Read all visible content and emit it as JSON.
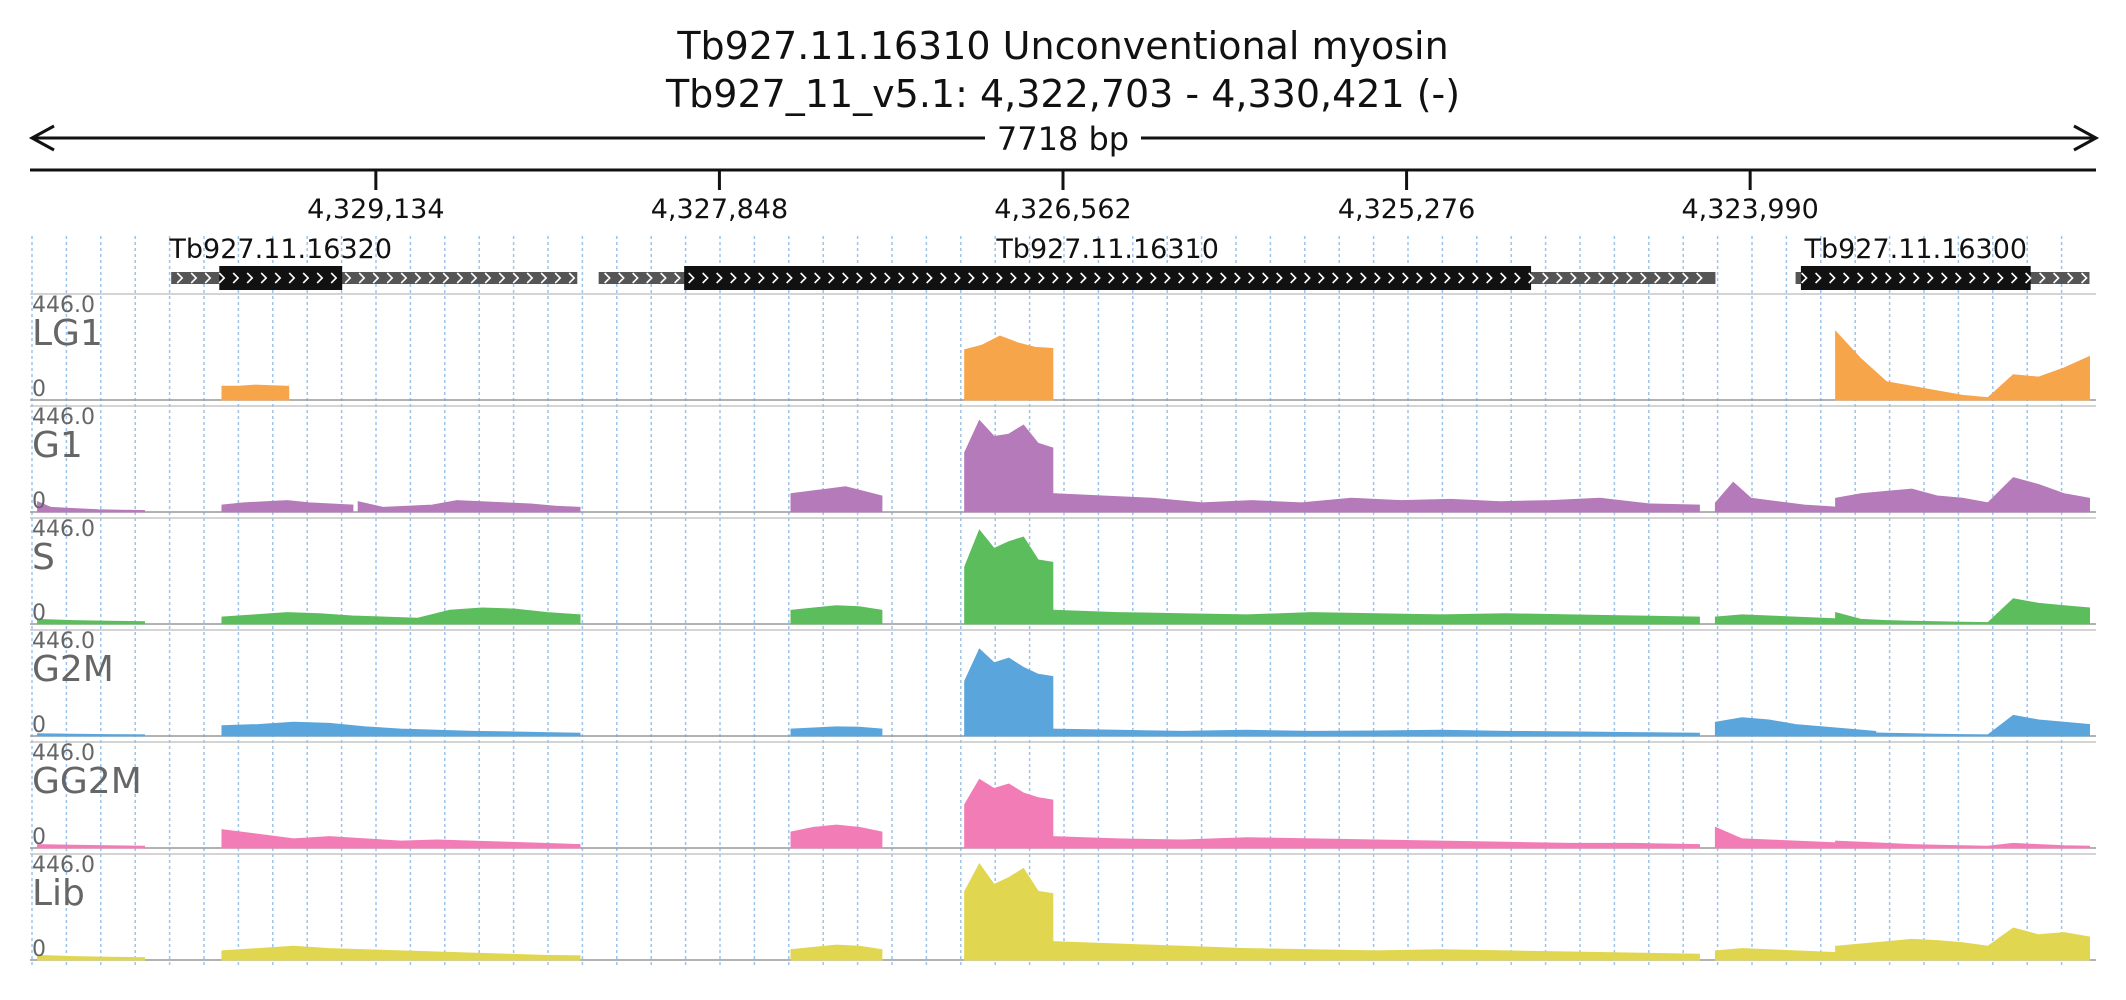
{
  "header": {
    "title_line1": "Tb927.11.16310  Unconventional myosin",
    "title_line2": "Tb927_11_v5.1: 4,322,703 - 4,330,421 (-)",
    "span_label": "7718 bp"
  },
  "region": {
    "start": 4322703,
    "end": 4330421,
    "strand": "-"
  },
  "ruler": {
    "ticks": [
      {
        "pos": 4329134,
        "label": "4,329,134"
      },
      {
        "pos": 4327848,
        "label": "4,327,848"
      },
      {
        "pos": 4326562,
        "label": "4,326,562"
      },
      {
        "pos": 4325276,
        "label": "4,325,276"
      },
      {
        "pos": 4323990,
        "label": "4,323,990"
      }
    ]
  },
  "genes": [
    {
      "name": "Tb927.11.16320",
      "utr": [
        4329900,
        4328380
      ],
      "cds": [
        4329720,
        4329260
      ]
    },
    {
      "name": "Tb927.11.16310",
      "utr": [
        4328300,
        4324120
      ],
      "cds": [
        4327980,
        4324810
      ]
    },
    {
      "name": "Tb927.11.16300",
      "utr": [
        4323820,
        4322720
      ],
      "cds": [
        4323800,
        4322940
      ]
    }
  ],
  "colors": {
    "LG1": "#f7a54a",
    "G1": "#b57ab9",
    "S": "#5cbd5c",
    "G2M": "#5aa5dc",
    "GG2M": "#f27cb6",
    "Lib": "#e0d650"
  },
  "chart_data": {
    "type": "area",
    "x_unit": "bp",
    "ymax": 446.0,
    "ymax_label": "446.0",
    "ymin_label": "0",
    "tracks": [
      {
        "name": "LG1",
        "segments": [
          [
            4329710,
            4329460,
            [
              60,
              60,
              65,
              62,
              60
            ]
          ],
          [
            4326930,
            4326600,
            [
              220,
              240,
              280,
              250,
              230,
              225
            ]
          ],
          [
            4323670,
            4322720,
            [
              300,
              180,
              80,
              60,
              40,
              20,
              10,
              110,
              100,
              140,
              190
            ]
          ]
        ]
      },
      {
        "name": "G1",
        "segments": [
          [
            4330400,
            4330350,
            [
              45,
              20
            ]
          ],
          [
            4330350,
            4330000,
            [
              20,
              15,
              10,
              8,
              6
            ]
          ],
          [
            4329710,
            4329220,
            [
              30,
              40,
              45,
              50,
              40,
              35,
              30
            ]
          ],
          [
            4329200,
            4328370,
            [
              45,
              20,
              25,
              30,
              50,
              45,
              40,
              35,
              25,
              20
            ]
          ],
          [
            4327580,
            4327240,
            [
              80,
              90,
              100,
              110,
              90,
              70
            ]
          ],
          [
            4326930,
            4326600,
            [
              260,
              400,
              330,
              340,
              380,
              300,
              280
            ]
          ],
          [
            4326600,
            4324180,
            [
              80,
              70,
              60,
              40,
              50,
              40,
              60,
              50,
              55,
              45,
              50,
              60,
              35,
              30
            ]
          ],
          [
            4324120,
            4323520,
            [
              40,
              130,
              60,
              50,
              40,
              30,
              25,
              20,
              15,
              10
            ]
          ],
          [
            4323670,
            4322720,
            [
              60,
              80,
              90,
              100,
              70,
              60,
              40,
              150,
              120,
              80,
              60
            ]
          ]
        ]
      },
      {
        "name": "S",
        "segments": [
          [
            4330400,
            4330000,
            [
              20,
              15,
              12,
              10
            ]
          ],
          [
            4329710,
            4328370,
            [
              30,
              40,
              50,
              45,
              35,
              30,
              25,
              60,
              70,
              65,
              50,
              40
            ]
          ],
          [
            4327580,
            4327240,
            [
              60,
              70,
              80,
              75,
              60
            ]
          ],
          [
            4326930,
            4326600,
            [
              250,
              410,
              330,
              360,
              380,
              280,
              270
            ]
          ],
          [
            4326600,
            4324180,
            [
              60,
              50,
              45,
              40,
              50,
              45,
              40,
              45,
              40,
              35,
              30
            ]
          ],
          [
            4324120,
            4323520,
            [
              30,
              40,
              35,
              30,
              25,
              20,
              15
            ]
          ],
          [
            4323670,
            4322720,
            [
              50,
              20,
              15,
              12,
              10,
              8,
              6,
              110,
              90,
              80,
              70
            ]
          ]
        ]
      },
      {
        "name": "G2M",
        "segments": [
          [
            4330400,
            4330000,
            [
              10,
              8,
              6,
              5
            ]
          ],
          [
            4329710,
            4328370,
            [
              45,
              50,
              60,
              55,
              40,
              30,
              25,
              20,
              18,
              15,
              12
            ]
          ],
          [
            4327580,
            4327240,
            [
              30,
              35,
              40,
              38,
              30
            ]
          ],
          [
            4326930,
            4326600,
            [
              240,
              380,
              320,
              340,
              300,
              270,
              260
            ]
          ],
          [
            4326600,
            4324180,
            [
              30,
              25,
              20,
              25,
              20,
              22,
              25,
              20,
              18,
              15,
              12
            ]
          ],
          [
            4324120,
            4323520,
            [
              60,
              80,
              70,
              50,
              40,
              30,
              20
            ]
          ],
          [
            4323670,
            4322720,
            [
              10,
              15,
              12,
              10,
              8,
              6,
              5,
              90,
              70,
              60,
              50
            ]
          ]
        ]
      },
      {
        "name": "GG2M",
        "segments": [
          [
            4330400,
            4330000,
            [
              15,
              12,
              10,
              8
            ]
          ],
          [
            4329710,
            4328370,
            [
              80,
              60,
              40,
              50,
              40,
              30,
              35,
              30,
              25,
              20,
              15
            ]
          ],
          [
            4327580,
            4327240,
            [
              70,
              90,
              100,
              90,
              70
            ]
          ],
          [
            4326930,
            4326600,
            [
              190,
              300,
              260,
              280,
              240,
              220,
              210
            ]
          ],
          [
            4326600,
            4324180,
            [
              50,
              40,
              35,
              45,
              40,
              35,
              30,
              25,
              20,
              20,
              15
            ]
          ],
          [
            4324120,
            4323520,
            [
              90,
              40,
              35,
              30,
              25,
              20,
              15
            ]
          ],
          [
            4323670,
            4322720,
            [
              30,
              25,
              20,
              15,
              12,
              10,
              8,
              20,
              15,
              10,
              8
            ]
          ]
        ]
      },
      {
        "name": "Lib",
        "segments": [
          [
            4330400,
            4330000,
            [
              20,
              15,
              12,
              10
            ]
          ],
          [
            4329710,
            4328370,
            [
              40,
              50,
              60,
              50,
              45,
              40,
              35,
              30,
              25,
              20,
              18
            ]
          ],
          [
            4327580,
            4327240,
            [
              45,
              55,
              65,
              60,
              45
            ]
          ],
          [
            4326930,
            4326600,
            [
              300,
              420,
              330,
              360,
              400,
              300,
              290
            ]
          ],
          [
            4326600,
            4324180,
            [
              80,
              70,
              60,
              50,
              45,
              40,
              45,
              40,
              35,
              30,
              25
            ]
          ],
          [
            4324120,
            4323520,
            [
              40,
              50,
              45,
              40,
              35,
              30,
              20
            ]
          ],
          [
            4323670,
            4322720,
            [
              60,
              70,
              80,
              90,
              85,
              75,
              60,
              140,
              110,
              120,
              100
            ]
          ]
        ]
      }
    ]
  }
}
